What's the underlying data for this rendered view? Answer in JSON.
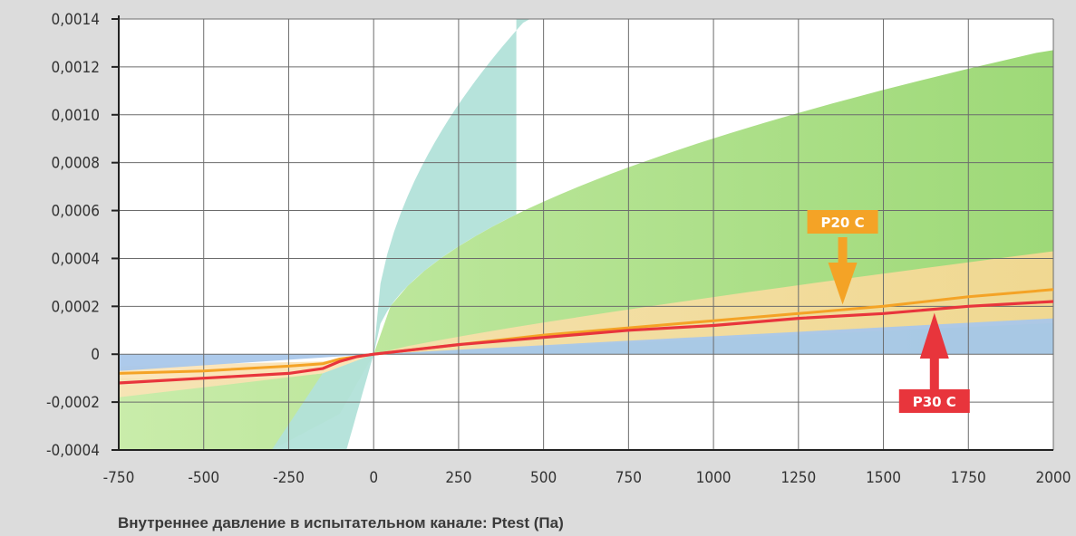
{
  "chart_data": {
    "type": "line",
    "title": "",
    "xlabel": "Внутреннее давление в испытательном канале: Ptest (Па)",
    "ylabel": "",
    "xlim": [
      -750,
      2000
    ],
    "ylim": [
      -0.0004,
      0.0014
    ],
    "grid": true,
    "x_ticks": [
      -750,
      -500,
      -250,
      0,
      250,
      500,
      750,
      1000,
      1250,
      1500,
      1750,
      2000
    ],
    "x_tick_labels": [
      "-750",
      "-500",
      "-250",
      "0",
      "250",
      "500",
      "750",
      "1000",
      "1250",
      "1500",
      "1750",
      "2000"
    ],
    "y_ticks": [
      -0.0004,
      -0.0002,
      0,
      0.0002,
      0.0004,
      0.0006,
      0.0008,
      0.001,
      0.0012,
      0.0014
    ],
    "y_tick_labels": [
      "-0,0004",
      "-0,0002",
      "0",
      "0,0002",
      "0,0004",
      "0,0006",
      "0,0008",
      "0,0010",
      "0,0012",
      "0,0014"
    ],
    "bands": [
      {
        "color": "#a8ddd6",
        "upper": [
          [
            -80,
            -0.0004
          ],
          [
            -50,
            -0.00025
          ],
          [
            0,
            0
          ],
          [
            100,
            0.0005
          ],
          [
            200,
            0.00085
          ],
          [
            300,
            0.0011
          ],
          [
            400,
            0.00132
          ],
          [
            440,
            0.0014
          ]
        ],
        "lower": [
          [
            -750,
            -0.0004
          ],
          [
            -750,
            -0.0004
          ]
        ],
        "lower_right": [
          [
            -80,
            -0.0004
          ],
          [
            -50,
            -0.00025
          ],
          [
            0,
            0
          ],
          [
            100,
            0.0005
          ],
          [
            200,
            0.00085
          ],
          [
            300,
            0.0011
          ],
          [
            400,
            0.00132
          ],
          [
            440,
            0.0014
          ]
        ]
      }
    ],
    "series": [
      {
        "name": "P20 C",
        "color": "#f4a326",
        "x": [
          -750,
          -500,
          -250,
          -150,
          -100,
          -50,
          0,
          250,
          500,
          750,
          1000,
          1250,
          1500,
          1750,
          2000
        ],
        "y": [
          -8e-05,
          -7e-05,
          -5e-05,
          -4e-05,
          -2e-05,
          -1e-05,
          0,
          4e-05,
          8e-05,
          0.00011,
          0.00014,
          0.00017,
          0.0002,
          0.00024,
          0.00027
        ]
      },
      {
        "name": "P30 C",
        "color": "#e8353c",
        "x": [
          -750,
          -500,
          -250,
          -150,
          -100,
          -50,
          0,
          250,
          500,
          750,
          1000,
          1250,
          1500,
          1750,
          2000
        ],
        "y": [
          -0.00012,
          -0.0001,
          -8e-05,
          -6e-05,
          -3e-05,
          -1e-05,
          0,
          4e-05,
          7e-05,
          0.0001,
          0.00012,
          0.00015,
          0.00017,
          0.0002,
          0.00022
        ]
      }
    ],
    "callouts": [
      {
        "label": "P20 C",
        "x": 1380,
        "y": 0.0002,
        "color": "#f4a326"
      },
      {
        "label": "P30 C",
        "x": 1650,
        "y": 0.00018,
        "color": "#e8353c"
      }
    ]
  }
}
